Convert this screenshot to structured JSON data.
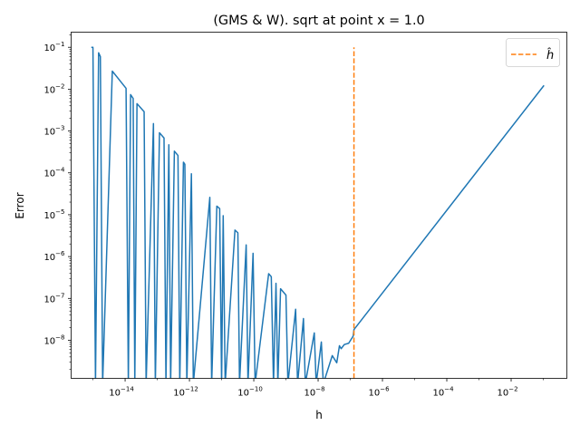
{
  "chart_data": {
    "type": "line",
    "title": "(GMS & W). sqrt at point x = 1.0",
    "xlabel": "h",
    "ylabel": "Error",
    "xscale": "log",
    "yscale": "log",
    "xlim": [
      2.1e-16,
      0.54
    ],
    "ylim": [
      1.23e-09,
      0.23
    ],
    "grid": false,
    "legend_position": "top-right",
    "xticks": [
      {
        "value": 1e-14,
        "base": "10",
        "exp": "−14"
      },
      {
        "value": 1e-12,
        "base": "10",
        "exp": "−12"
      },
      {
        "value": 1e-10,
        "base": "10",
        "exp": "−10"
      },
      {
        "value": 1e-08,
        "base": "10",
        "exp": "−8"
      },
      {
        "value": 1e-06,
        "base": "10",
        "exp": "−6"
      },
      {
        "value": 0.0001,
        "base": "10",
        "exp": "−4"
      },
      {
        "value": 0.01,
        "base": "10",
        "exp": "−2"
      }
    ],
    "yticks": [
      {
        "value": 0.1,
        "base": "10",
        "exp": "−1"
      },
      {
        "value": 0.01,
        "base": "10",
        "exp": "−2"
      },
      {
        "value": 0.001,
        "base": "10",
        "exp": "−3"
      },
      {
        "value": 0.0001,
        "base": "10",
        "exp": "−4"
      },
      {
        "value": 1e-05,
        "base": "10",
        "exp": "−5"
      },
      {
        "value": 1e-06,
        "base": "10",
        "exp": "−6"
      },
      {
        "value": 1e-07,
        "base": "10",
        "exp": "−7"
      },
      {
        "value": 1e-08,
        "base": "10",
        "exp": "−8"
      }
    ],
    "series": [
      {
        "color": "#1f77b4",
        "x": [
          8.9e-16,
          1e-15,
          1.2e-15,
          1.5e-15,
          1.7e-15,
          2e-15,
          4e-15,
          1.07e-14,
          1.26e-14,
          1.48e-14,
          1.78e-14,
          2e-14,
          2.34e-14,
          3.9e-14,
          4.5e-14,
          7.6e-14,
          8.7e-14,
          1.17e-13,
          1.62e-13,
          1.86e-13,
          2.29e-13,
          2.6e-13,
          3.4e-13,
          4.4e-13,
          5e-13,
          6.5e-13,
          7.2e-13,
          8.3e-13,
          1.15e-12,
          1.32e-12,
          4.3e-12,
          4.9e-12,
          7.1e-12,
          8.7e-12,
          1e-11,
          1.12e-11,
          1.29e-11,
          2.6e-11,
          3.2e-11,
          3.6e-11,
          5.8e-11,
          6.6e-11,
          9.5e-11,
          1.1e-10,
          2.9e-10,
          3.5e-10,
          4.1e-10,
          4.9e-10,
          5.6e-10,
          6.8e-10,
          1e-09,
          1.15e-09,
          2e-09,
          2.3e-09,
          3.5e-09,
          4e-09,
          7.6e-09,
          8.7e-09,
          1.26e-08,
          1.45e-08,
          2.75e-08,
          3.8e-08,
          4.6e-08,
          5.2e-08,
          6.5e-08,
          8.9e-08,
          1.23e-07,
          1.3e-07,
          0.105
        ],
        "y": [
          0.1,
          0.1,
          0,
          0.074,
          0.06,
          0,
          0.027,
          0.0105,
          0,
          0.0074,
          0.006,
          0,
          0.0045,
          0.0029,
          0,
          0.0015,
          0,
          0.00091,
          0.00068,
          0,
          0.00047,
          0,
          0.00033,
          0.00026,
          0,
          0.00018,
          0.00016,
          0,
          9.5e-05,
          0,
          2.6e-05,
          0,
          1.6e-05,
          1.4e-05,
          0,
          9.5e-06,
          0,
          4.3e-06,
          3.7e-06,
          0,
          1.9e-06,
          0,
          1.2e-06,
          0,
          3.9e-07,
          3.3e-07,
          0,
          2.3e-07,
          0,
          1.7e-07,
          1.2e-07,
          0,
          5.5e-08,
          0,
          3.3e-08,
          0,
          1.5e-08,
          0,
          9.1e-09,
          0,
          4.3e-09,
          2.9e-09,
          7.4e-09,
          6.3e-09,
          7.9e-09,
          8.5e-09,
          1.26e-08,
          1.8e-08,
          0.0123
        ]
      }
    ],
    "vline": {
      "name": "ĥ",
      "x": 1.3e-07,
      "ymin": 1.23e-09,
      "ymax": 0.1,
      "color": "#ff7f0e",
      "style": "dashed"
    },
    "legend": [
      {
        "label": "ĥ",
        "color": "#ff7f0e",
        "style": "dashed"
      }
    ]
  }
}
